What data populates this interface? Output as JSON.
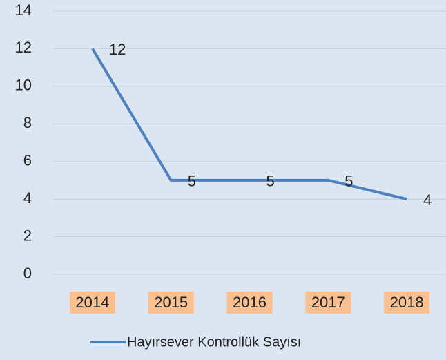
{
  "chart_data": {
    "type": "line",
    "categories": [
      "2014",
      "2015",
      "2016",
      "2017",
      "2018"
    ],
    "series": [
      {
        "name": "Hayırsever Kontrollük Sayısı",
        "color": "#4f81bd",
        "values": [
          12,
          5,
          5,
          5,
          4
        ]
      }
    ],
    "ylim": [
      0,
      14
    ],
    "yticks": [
      0,
      2,
      4,
      6,
      8,
      10,
      12,
      14
    ],
    "grid": true,
    "legend": "bottom",
    "background": "#dce6f2",
    "category_label_background": "#fac090"
  }
}
